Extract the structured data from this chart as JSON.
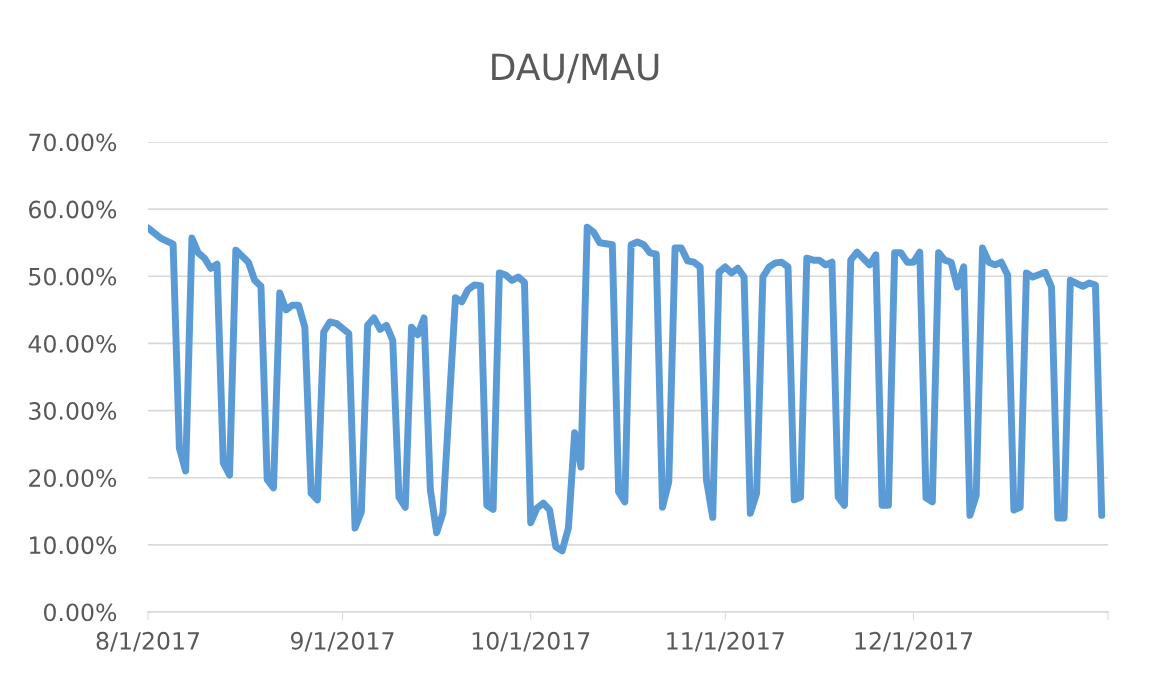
{
  "chart_data": {
    "type": "line",
    "title": "DAU/MAU",
    "x": [
      "2017-08-01",
      "2017-08-03",
      "2017-08-05",
      "2017-08-06",
      "2017-08-07",
      "2017-08-08",
      "2017-08-09",
      "2017-08-10",
      "2017-08-11",
      "2017-08-12",
      "2017-08-13",
      "2017-08-14",
      "2017-08-15",
      "2017-08-17",
      "2017-08-18",
      "2017-08-19",
      "2017-08-20",
      "2017-08-21",
      "2017-08-22",
      "2017-08-23",
      "2017-08-24",
      "2017-08-25",
      "2017-08-26",
      "2017-08-27",
      "2017-08-28",
      "2017-08-29",
      "2017-08-30",
      "2017-08-31",
      "2017-09-02",
      "2017-09-03",
      "2017-09-04",
      "2017-09-05",
      "2017-09-06",
      "2017-09-07",
      "2017-09-08",
      "2017-09-09",
      "2017-09-10",
      "2017-09-11",
      "2017-09-12",
      "2017-09-13",
      "2017-09-14",
      "2017-09-15",
      "2017-09-16",
      "2017-09-17",
      "2017-09-19",
      "2017-09-20",
      "2017-09-21",
      "2017-09-22",
      "2017-09-23",
      "2017-09-24",
      "2017-09-25",
      "2017-09-26",
      "2017-09-27",
      "2017-09-28",
      "2017-09-29",
      "2017-09-30",
      "2017-10-01",
      "2017-10-02",
      "2017-10-03",
      "2017-10-04",
      "2017-10-05",
      "2017-10-06",
      "2017-10-07",
      "2017-10-08",
      "2017-10-09",
      "2017-10-10",
      "2017-10-11",
      "2017-10-12",
      "2017-10-14",
      "2017-10-15",
      "2017-10-16",
      "2017-10-17",
      "2017-10-18",
      "2017-10-19",
      "2017-10-20",
      "2017-10-21",
      "2017-10-22",
      "2017-10-23",
      "2017-10-24",
      "2017-10-25",
      "2017-10-26",
      "2017-10-27",
      "2017-10-28",
      "2017-10-29",
      "2017-10-30",
      "2017-10-31",
      "2017-11-01",
      "2017-11-02",
      "2017-11-03",
      "2017-11-04",
      "2017-11-05",
      "2017-11-06",
      "2017-11-07",
      "2017-11-08",
      "2017-11-09",
      "2017-11-10",
      "2017-11-11",
      "2017-11-12",
      "2017-11-13",
      "2017-11-14",
      "2017-11-15",
      "2017-11-16",
      "2017-11-17",
      "2017-11-18",
      "2017-11-19",
      "2017-11-20",
      "2017-11-21",
      "2017-11-22",
      "2017-11-24",
      "2017-11-25",
      "2017-11-26",
      "2017-11-27",
      "2017-11-28",
      "2017-11-29",
      "2017-11-30",
      "2017-12-01",
      "2017-12-02",
      "2017-12-03",
      "2017-12-04",
      "2017-12-05",
      "2017-12-06",
      "2017-12-07",
      "2017-12-08",
      "2017-12-09",
      "2017-12-10",
      "2017-12-11",
      "2017-12-12",
      "2017-12-13",
      "2017-12-14",
      "2017-12-15",
      "2017-12-16",
      "2017-12-17",
      "2017-12-18",
      "2017-12-19",
      "2017-12-20",
      "2017-12-22",
      "2017-12-23",
      "2017-12-24",
      "2017-12-25",
      "2017-12-26",
      "2017-12-28",
      "2017-12-29",
      "2017-12-30",
      "2017-12-31"
    ],
    "series": [
      {
        "color": "#5b9bd5",
        "values": [
          57.2,
          55.7,
          54.8,
          24.4,
          21.0,
          55.7,
          53.5,
          52.7,
          51.2,
          51.8,
          22.2,
          20.4,
          53.9,
          52.1,
          49.4,
          48.5,
          19.7,
          18.5,
          47.5,
          45.0,
          45.7,
          45.7,
          42.4,
          17.7,
          16.7,
          41.7,
          43.2,
          43.0,
          41.5,
          12.5,
          14.9,
          42.7,
          43.8,
          42.1,
          42.7,
          40.5,
          17.1,
          15.6,
          42.4,
          41.3,
          43.8,
          18.2,
          11.8,
          14.7,
          46.8,
          46.2,
          48.0,
          48.7,
          48.6,
          15.9,
          15.3,
          50.5,
          50.2,
          49.4,
          49.9,
          49.1,
          13.3,
          15.5,
          16.2,
          15.2,
          9.7,
          9.1,
          12.5,
          26.7,
          21.6,
          57.3,
          56.6,
          55.0,
          54.7,
          17.9,
          16.4,
          54.7,
          55.1,
          54.7,
          53.5,
          53.3,
          15.6,
          19.4,
          54.2,
          54.2,
          52.3,
          52.1,
          51.4,
          19.7,
          14.1,
          50.6,
          51.4,
          50.5,
          51.2,
          49.9,
          14.7,
          17.7,
          49.9,
          51.4,
          52.0,
          52.1,
          51.4,
          16.7,
          17.1,
          52.7,
          52.4,
          52.4,
          51.7,
          52.1,
          17.1,
          15.9,
          52.4,
          53.6,
          51.7,
          53.2,
          15.9,
          15.9,
          53.5,
          53.5,
          52.1,
          52.1,
          53.6,
          17.0,
          16.4,
          53.5,
          52.4,
          52.1,
          48.4,
          51.4,
          14.4,
          17.4,
          54.2,
          52.1,
          51.7,
          52.1,
          50.2,
          15.2,
          15.6,
          50.5,
          49.9,
          50.6,
          48.4,
          14.0,
          14.0,
          49.4,
          48.5,
          49.0,
          48.7,
          14.4
        ]
      }
    ],
    "xlim": [
      "2017-08-01",
      "2018-01-01"
    ],
    "xticks": [
      {
        "value": "2017-08-01",
        "label": "8/1/2017"
      },
      {
        "value": "2017-09-01",
        "label": "9/1/2017"
      },
      {
        "value": "2017-10-01",
        "label": "10/1/2017"
      },
      {
        "value": "2017-11-01",
        "label": "11/1/2017"
      },
      {
        "value": "2017-12-01",
        "label": "12/1/2017"
      },
      {
        "value": "2018-01-01",
        "label": null
      }
    ],
    "ylim": [
      0,
      70
    ],
    "yticks": [
      {
        "value": 0,
        "label": "0.00%"
      },
      {
        "value": 10,
        "label": "10.00%"
      },
      {
        "value": 20,
        "label": "20.00%"
      },
      {
        "value": 30,
        "label": "30.00%"
      },
      {
        "value": 40,
        "label": "40.00%"
      },
      {
        "value": 50,
        "label": "50.00%"
      },
      {
        "value": 60,
        "label": "60.00%"
      },
      {
        "value": 70,
        "label": "70.00%"
      }
    ],
    "grid": "y",
    "line_style": "solid",
    "marker": "none"
  }
}
